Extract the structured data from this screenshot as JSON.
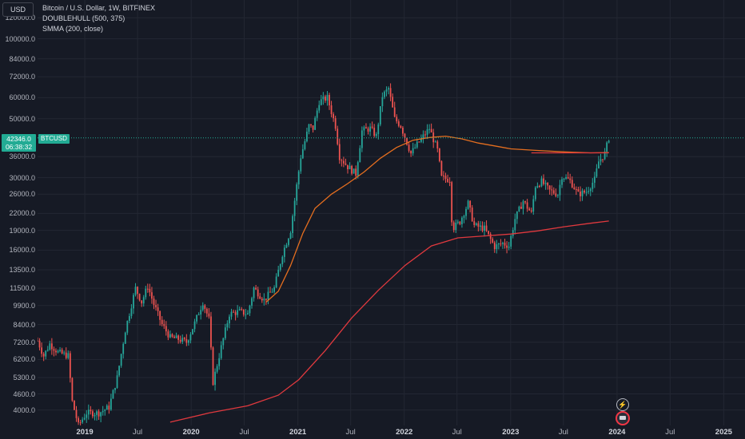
{
  "currency_label": "USD",
  "legend": {
    "title": "Bitcoin / U.S. Dollar, 1W, BITFINEX",
    "indicator1": "DOUBLEHULL (500, 375)",
    "indicator2": "SMMA (200, close)"
  },
  "last_price": {
    "price": "42346.0",
    "countdown": "06:38:32",
    "symbol": "BTCUSD"
  },
  "event_icons": {
    "bolt": "lightning-icon",
    "event": "earnings-icon"
  },
  "colors": {
    "background": "#161a25",
    "up": "#26a69a",
    "down": "#ef5350",
    "hull": "#e56e1f",
    "smma": "#e0393e",
    "price_line": "#22ab94",
    "grid": "#232733"
  },
  "chart_data": {
    "type": "candlestick",
    "title": "Bitcoin / U.S. Dollar, 1W, BITFINEX",
    "scale": "log",
    "ylim": [
      3500,
      140000
    ],
    "xlim": [
      "2018-07-23",
      "2025-03-15"
    ],
    "y_ticks": [
      "120000.0",
      "100000.0",
      "84000.0",
      "72000.0",
      "60000.0",
      "50000.0",
      "36000.0",
      "30000.0",
      "26000.0",
      "22000.0",
      "19000.0",
      "16000.0",
      "13500.0",
      "11500.0",
      "9900.0",
      "8400.0",
      "7200.0",
      "6200.0",
      "5300.0",
      "4600.0",
      "4000.0"
    ],
    "x_ticks": [
      {
        "label": "2019",
        "date": "2019-01-01",
        "year": true
      },
      {
        "label": "Jul",
        "date": "2019-07-01",
        "year": false
      },
      {
        "label": "2020",
        "date": "2020-01-01",
        "year": true
      },
      {
        "label": "Jul",
        "date": "2020-07-01",
        "year": false
      },
      {
        "label": "2021",
        "date": "2021-01-01",
        "year": true
      },
      {
        "label": "Jul",
        "date": "2021-07-01",
        "year": false
      },
      {
        "label": "2022",
        "date": "2022-01-01",
        "year": true
      },
      {
        "label": "Jul",
        "date": "2022-07-01",
        "year": false
      },
      {
        "label": "2023",
        "date": "2023-01-01",
        "year": true
      },
      {
        "label": "Jul",
        "date": "2023-07-01",
        "year": false
      },
      {
        "label": "2024",
        "date": "2024-01-01",
        "year": true
      },
      {
        "label": "Jul",
        "date": "2024-07-01",
        "year": false
      },
      {
        "label": "2025",
        "date": "2025-01-01",
        "year": true
      }
    ],
    "price_anchors": [
      [
        "2018-07-23",
        7300
      ],
      [
        "2018-08-13",
        6400
      ],
      [
        "2018-09-03",
        7100
      ],
      [
        "2018-10-01",
        6600
      ],
      [
        "2018-11-05",
        6400
      ],
      [
        "2018-11-19",
        4300
      ],
      [
        "2018-12-10",
        3500
      ],
      [
        "2019-01-07",
        3900
      ],
      [
        "2019-02-18",
        3900
      ],
      [
        "2019-03-25",
        4100
      ],
      [
        "2019-04-22",
        5300
      ],
      [
        "2019-05-20",
        8000
      ],
      [
        "2019-06-24",
        11500
      ],
      [
        "2019-07-15",
        10200
      ],
      [
        "2019-08-05",
        11700
      ],
      [
        "2019-08-26",
        10000
      ],
      [
        "2019-09-23",
        8400
      ],
      [
        "2019-10-21",
        7500
      ],
      [
        "2019-11-18",
        7400
      ],
      [
        "2019-12-16",
        7200
      ],
      [
        "2020-01-13",
        8500
      ],
      [
        "2020-02-10",
        10200
      ],
      [
        "2020-03-02",
        8800
      ],
      [
        "2020-03-16",
        5100
      ],
      [
        "2020-04-13",
        6900
      ],
      [
        "2020-05-11",
        9200
      ],
      [
        "2020-06-15",
        9400
      ],
      [
        "2020-07-13",
        9200
      ],
      [
        "2020-08-03",
        11500
      ],
      [
        "2020-09-07",
        10400
      ],
      [
        "2020-10-12",
        11500
      ],
      [
        "2020-11-09",
        15500
      ],
      [
        "2020-12-07",
        19000
      ],
      [
        "2020-12-28",
        28000
      ],
      [
        "2021-01-11",
        36000
      ],
      [
        "2021-02-08",
        47000
      ],
      [
        "2021-02-22",
        46000
      ],
      [
        "2021-03-15",
        58000
      ],
      [
        "2021-04-12",
        60000
      ],
      [
        "2021-05-10",
        47000
      ],
      [
        "2021-05-24",
        36000
      ],
      [
        "2021-06-21",
        33000
      ],
      [
        "2021-07-19",
        31000
      ],
      [
        "2021-08-09",
        45000
      ],
      [
        "2021-09-06",
        46000
      ],
      [
        "2021-09-27",
        43000
      ],
      [
        "2021-10-18",
        61000
      ],
      [
        "2021-11-08",
        65000
      ],
      [
        "2021-11-29",
        50000
      ],
      [
        "2021-12-20",
        47000
      ],
      [
        "2022-01-24",
        37000
      ],
      [
        "2022-02-14",
        40000
      ],
      [
        "2022-03-28",
        46000
      ],
      [
        "2022-04-25",
        38000
      ],
      [
        "2022-05-09",
        30000
      ],
      [
        "2022-06-06",
        29500
      ],
      [
        "2022-06-13",
        21000
      ],
      [
        "2022-06-20",
        19500
      ],
      [
        "2022-07-11",
        20500
      ],
      [
        "2022-08-08",
        24000
      ],
      [
        "2022-08-29",
        19800
      ],
      [
        "2022-10-03",
        19300
      ],
      [
        "2022-11-07",
        16500
      ],
      [
        "2022-12-05",
        17000
      ],
      [
        "2022-12-26",
        16600
      ],
      [
        "2023-01-16",
        21000
      ],
      [
        "2023-02-13",
        24500
      ],
      [
        "2023-03-13",
        22000
      ],
      [
        "2023-03-27",
        28000
      ],
      [
        "2023-04-17",
        29000
      ],
      [
        "2023-05-15",
        26800
      ],
      [
        "2023-06-12",
        26000
      ],
      [
        "2023-06-26",
        30500
      ],
      [
        "2023-07-24",
        29200
      ],
      [
        "2023-08-21",
        26000
      ],
      [
        "2023-09-18",
        26600
      ],
      [
        "2023-10-16",
        29500
      ],
      [
        "2023-10-30",
        34500
      ],
      [
        "2023-11-20",
        37000
      ],
      [
        "2023-12-04",
        42346
      ]
    ],
    "series": [
      {
        "name": "DOUBLEHULL (500, 375)",
        "type": "line",
        "points": [
          [
            "2020-09-14",
            10200
          ],
          [
            "2020-10-26",
            11200
          ],
          [
            "2020-12-07",
            14000
          ],
          [
            "2021-01-18",
            18500
          ],
          [
            "2021-03-01",
            23000
          ],
          [
            "2021-04-26",
            26000
          ],
          [
            "2021-06-21",
            28500
          ],
          [
            "2021-08-16",
            31500
          ],
          [
            "2021-10-11",
            35500
          ],
          [
            "2021-12-06",
            39000
          ],
          [
            "2022-01-31",
            41500
          ],
          [
            "2022-03-28",
            42500
          ],
          [
            "2022-05-23",
            43000
          ],
          [
            "2022-07-18",
            42000
          ],
          [
            "2022-09-12",
            40500
          ],
          [
            "2022-11-07",
            39500
          ],
          [
            "2023-01-02",
            38500
          ],
          [
            "2023-03-27",
            38000
          ],
          [
            "2023-07-03",
            37500
          ],
          [
            "2023-10-02",
            37200
          ],
          [
            "2023-12-04",
            37300
          ]
        ]
      },
      {
        "name": "SMMA (200, close)",
        "type": "line",
        "points": [
          [
            "2019-10-21",
            3600
          ],
          [
            "2020-03-02",
            3900
          ],
          [
            "2020-07-13",
            4150
          ],
          [
            "2020-10-26",
            4550
          ],
          [
            "2021-01-04",
            5200
          ],
          [
            "2021-04-05",
            6700
          ],
          [
            "2021-07-05",
            8900
          ],
          [
            "2021-10-04",
            11300
          ],
          [
            "2022-01-03",
            14000
          ],
          [
            "2022-04-04",
            16600
          ],
          [
            "2022-07-04",
            17800
          ],
          [
            "2022-10-03",
            18100
          ],
          [
            "2023-01-02",
            18400
          ],
          [
            "2023-04-03",
            18900
          ],
          [
            "2023-07-03",
            19600
          ],
          [
            "2023-10-02",
            20200
          ],
          [
            "2023-12-04",
            20600
          ]
        ]
      }
    ],
    "annotations": {
      "horizontal_line": {
        "price": 37200,
        "from": "2023-03-13",
        "to": "2023-12-04"
      }
    }
  }
}
